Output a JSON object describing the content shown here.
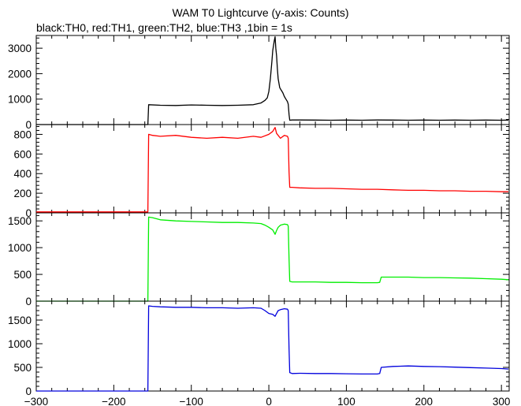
{
  "title": "WAM T0 Lightcurve (y-axis: Counts)",
  "subtitle": "black:TH0, red:TH1, green:TH2, blue:TH3 ,1bin = 1s",
  "chart_data": {
    "type": "line",
    "xlim": [
      -300,
      310
    ],
    "x_ticks": [
      -300,
      -200,
      -100,
      0,
      100,
      200,
      300
    ],
    "x_tick_labels": [
      "−300",
      "−200",
      "−100",
      "0",
      "100",
      "200",
      "300"
    ],
    "panels": [
      {
        "name": "TH0",
        "color": "#000000",
        "ylim": [
          0,
          3500
        ],
        "y_ticks": [
          0,
          1000,
          2000,
          3000
        ],
        "y_tick_labels": [
          "0",
          "1000",
          "2000",
          "3000"
        ],
        "series": [
          {
            "x": [
              -305,
              -156,
              -155,
              -140,
              -120,
              -100,
              -80,
              -60,
              -40,
              -20,
              -10,
              -5,
              -2,
              0,
              2,
              4,
              5,
              6,
              7,
              8,
              9,
              10,
              11,
              12,
              14,
              16,
              18,
              20,
              22,
              24,
              25,
              26,
              27,
              30,
              40,
              60,
              80,
              100,
              120,
              140,
              160,
              180,
              200,
              220,
              240,
              260,
              280,
              300,
              309
            ],
            "y": [
              0,
              0,
              780,
              760,
              750,
              770,
              760,
              750,
              760,
              780,
              850,
              950,
              1050,
              1300,
              1800,
              2500,
              2900,
              3100,
              3300,
              3450,
              3000,
              2700,
              2200,
              1800,
              1450,
              1350,
              1250,
              1100,
              1000,
              900,
              800,
              400,
              170,
              180,
              180,
              175,
              170,
              175,
              170,
              180,
              175,
              170,
              175,
              170,
              175,
              170,
              175,
              170,
              175
            ]
          }
        ]
      },
      {
        "name": "TH1",
        "color": "#ff0000",
        "ylim": [
          0,
          900
        ],
        "y_ticks": [
          0,
          200,
          400,
          600,
          800
        ],
        "y_tick_labels": [
          "0",
          "200",
          "400",
          "600",
          "800"
        ],
        "series": [
          {
            "x": [
              -305,
              -156,
              -155,
              -150,
              -140,
              -120,
              -100,
              -80,
              -60,
              -40,
              -20,
              -10,
              0,
              5,
              8,
              10,
              15,
              20,
              24,
              25,
              26,
              27,
              30,
              40,
              60,
              80,
              100,
              120,
              140,
              160,
              180,
              200,
              220,
              240,
              260,
              280,
              300,
              309
            ],
            "y": [
              10,
              10,
              800,
              790,
              780,
              790,
              770,
              760,
              770,
              760,
              780,
              770,
              800,
              830,
              870,
              810,
              760,
              790,
              780,
              760,
              420,
              260,
              260,
              255,
              250,
              250,
              245,
              240,
              240,
              235,
              230,
              230,
              225,
              225,
              220,
              220,
              215,
              215
            ]
          }
        ]
      },
      {
        "name": "TH2",
        "color": "#00ee00",
        "ylim": [
          0,
          1650
        ],
        "y_ticks": [
          0,
          500,
          1000,
          1500
        ],
        "y_tick_labels": [
          "0",
          "500",
          "1000",
          "1500"
        ],
        "series": [
          {
            "x": [
              -305,
              -156,
              -155,
              -150,
              -140,
              -120,
              -100,
              -80,
              -60,
              -40,
              -20,
              -10,
              -5,
              0,
              5,
              8,
              10,
              12,
              15,
              20,
              24,
              25,
              26,
              27,
              30,
              40,
              60,
              80,
              100,
              120,
              140,
              143,
              145,
              160,
              180,
              200,
              220,
              240,
              260,
              280,
              300,
              309
            ],
            "y": [
              0,
              0,
              1570,
              1560,
              1520,
              1500,
              1490,
              1480,
              1470,
              1470,
              1460,
              1450,
              1420,
              1380,
              1330,
              1250,
              1320,
              1380,
              1420,
              1440,
              1430,
              1400,
              800,
              370,
              360,
              360,
              360,
              350,
              350,
              345,
              345,
              350,
              450,
              450,
              450,
              440,
              440,
              435,
              430,
              420,
              410,
              400
            ]
          }
        ]
      },
      {
        "name": "TH3",
        "color": "#0000dd",
        "ylim": [
          0,
          1900
        ],
        "y_ticks": [
          0,
          500,
          1000,
          1500
        ],
        "y_tick_labels": [
          "0",
          "500",
          "1000",
          "1500"
        ],
        "series": [
          {
            "x": [
              -305,
              -156,
              -155,
              -150,
              -140,
              -120,
              -100,
              -80,
              -60,
              -40,
              -20,
              -10,
              -5,
              0,
              5,
              8,
              10,
              12,
              15,
              20,
              24,
              25,
              26,
              27,
              30,
              40,
              60,
              80,
              100,
              120,
              140,
              143,
              145,
              160,
              180,
              200,
              220,
              240,
              260,
              280,
              300,
              309
            ],
            "y": [
              0,
              0,
              1800,
              1790,
              1780,
              1770,
              1770,
              1760,
              1760,
              1750,
              1760,
              1750,
              1700,
              1640,
              1620,
              1580,
              1640,
              1700,
              1720,
              1740,
              1730,
              1700,
              900,
              390,
              370,
              375,
              370,
              370,
              365,
              360,
              360,
              370,
              500,
              520,
              530,
              520,
              515,
              505,
              495,
              485,
              475,
              465
            ]
          }
        ]
      }
    ]
  }
}
